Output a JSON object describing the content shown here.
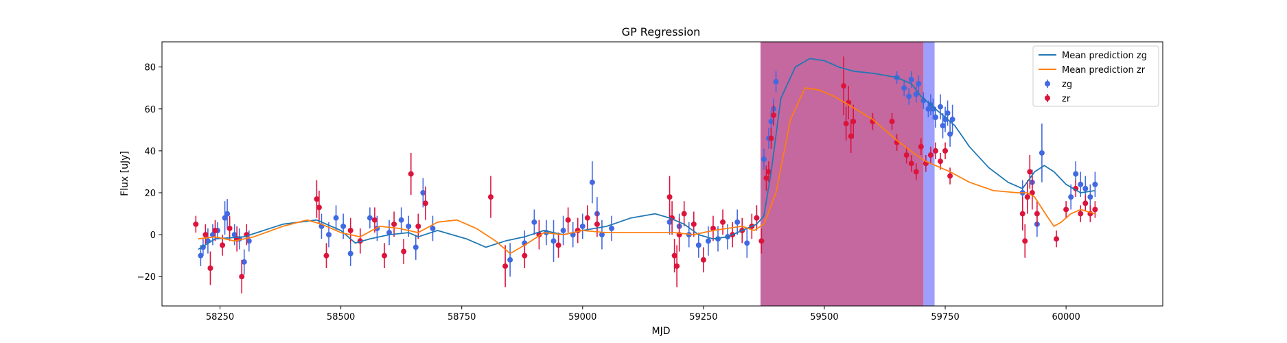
{
  "chart_data": {
    "type": "scatter",
    "title": "GP Regression",
    "xlabel": "MJD",
    "ylabel": "Flux [uJy]",
    "xlim": [
      58130,
      60200
    ],
    "ylim": [
      -34,
      92
    ],
    "x_ticks": [
      58250,
      58500,
      58750,
      59000,
      59250,
      59500,
      59750,
      60000
    ],
    "y_ticks": [
      -20,
      0,
      20,
      40,
      60,
      80
    ],
    "legend_position": "top-right",
    "legend": [
      "Mean prediction zg",
      "Mean prediction zr",
      "zg",
      "zr"
    ],
    "shaded_regions": [
      {
        "x0": 59705,
        "x1": 59728,
        "color": "#9e9efc"
      },
      {
        "x0": 59368,
        "x1": 59705,
        "color": "#c4689f"
      }
    ],
    "series": [
      {
        "name": "Mean prediction zg",
        "kind": "line",
        "color": "#1f77b4",
        "x": [
          58205,
          58240,
          58300,
          58380,
          58450,
          58500,
          58530,
          58560,
          58600,
          58640,
          58660,
          58700,
          58760,
          58800,
          58840,
          58880,
          58920,
          58960,
          59000,
          59050,
          59100,
          59150,
          59180,
          59210,
          59240,
          59270,
          59300,
          59330,
          59360,
          59375,
          59390,
          59410,
          59440,
          59470,
          59500,
          59530,
          59560,
          59600,
          59650,
          59680,
          59700,
          59720,
          59740,
          59770,
          59800,
          59840,
          59880,
          59910,
          59935,
          59955,
          59975,
          60000,
          60030,
          60060
        ],
        "y": [
          -7,
          -2,
          -1,
          5,
          7,
          2,
          -4,
          -2,
          0,
          1,
          -1,
          2,
          -2,
          -6,
          -3,
          -1,
          2,
          0,
          2,
          4,
          8,
          10,
          8,
          5,
          0,
          -2,
          -1,
          2,
          5,
          9,
          30,
          65,
          80,
          84,
          83,
          80,
          78,
          77,
          75,
          72,
          66,
          62,
          58,
          52,
          42,
          32,
          25,
          22,
          30,
          33,
          30,
          24,
          20,
          21
        ]
      },
      {
        "name": "Mean prediction zr",
        "kind": "line",
        "color": "#ff7f0e",
        "x": [
          58205,
          58240,
          58280,
          58320,
          58380,
          58430,
          58460,
          58500,
          58540,
          58580,
          58620,
          58660,
          58700,
          58740,
          58780,
          58820,
          58850,
          58880,
          58920,
          58960,
          59000,
          59050,
          59100,
          59150,
          59190,
          59230,
          59270,
          59300,
          59330,
          59355,
          59375,
          59400,
          59430,
          59460,
          59490,
          59520,
          59550,
          59600,
          59650,
          59690,
          59710,
          59730,
          59760,
          59800,
          59850,
          59900,
          59920,
          59935,
          59960,
          59975,
          59990,
          60010,
          60030,
          60060
        ],
        "y": [
          -2,
          -1,
          -3,
          -1,
          4,
          7,
          5,
          1,
          -1,
          4,
          3,
          1,
          6,
          7,
          3,
          -3,
          -9,
          -5,
          1,
          0,
          2,
          1,
          1,
          1,
          1,
          0,
          2,
          3,
          4,
          2,
          5,
          20,
          55,
          70,
          69,
          66,
          62,
          55,
          45,
          38,
          35,
          33,
          30,
          25,
          21,
          20,
          20,
          18,
          9,
          4,
          6,
          10,
          12,
          10
        ]
      },
      {
        "name": "zg",
        "kind": "errorbar",
        "color": "#4169e1",
        "x": [
          58210,
          58215,
          58225,
          58235,
          58245,
          58260,
          58265,
          58280,
          58290,
          58300,
          58310,
          58460,
          58475,
          58490,
          58505,
          58520,
          58560,
          58575,
          58600,
          58625,
          58640,
          58655,
          58670,
          58690,
          58850,
          58880,
          58900,
          58925,
          58940,
          58960,
          58980,
          59000,
          59020,
          59030,
          59040,
          59060,
          59180,
          59200,
          59220,
          59240,
          59260,
          59280,
          59300,
          59320,
          59340,
          59360,
          59375,
          59385,
          59390,
          59395,
          59400,
          59650,
          59665,
          59675,
          59680,
          59690,
          59695,
          59705,
          59715,
          59720,
          59725,
          59730,
          59740,
          59745,
          59750,
          59755,
          59760,
          59765,
          59910,
          59920,
          59930,
          59940,
          59950,
          60010,
          60020,
          60030,
          60040,
          60050,
          60060
        ],
        "y": [
          -10,
          -6,
          -3,
          0,
          2,
          8,
          10,
          0,
          -2,
          -13,
          -3,
          4,
          0,
          8,
          4,
          -9,
          8,
          3,
          1,
          7,
          4,
          -6,
          20,
          3,
          -12,
          -4,
          6,
          1,
          -3,
          2,
          0,
          4,
          25,
          10,
          0,
          3,
          6,
          4,
          0,
          -5,
          -3,
          -2,
          -1,
          6,
          -4,
          8,
          36,
          46,
          54,
          60,
          73,
          75,
          70,
          66,
          74,
          67,
          72,
          64,
          60,
          62,
          60,
          56,
          61,
          52,
          55,
          58,
          48,
          55,
          20,
          18,
          25,
          5,
          39,
          18,
          29,
          24,
          22,
          18,
          24
        ],
        "err": [
          5,
          4,
          6,
          5,
          4,
          8,
          7,
          5,
          5,
          6,
          5,
          6,
          6,
          6,
          6,
          6,
          5,
          6,
          6,
          6,
          5,
          6,
          7,
          6,
          8,
          6,
          6,
          6,
          10,
          7,
          6,
          6,
          10,
          8,
          7,
          6,
          6,
          6,
          6,
          6,
          7,
          6,
          6,
          6,
          7,
          6,
          5,
          5,
          5,
          5,
          5,
          3,
          4,
          4,
          4,
          4,
          4,
          4,
          4,
          5,
          5,
          5,
          6,
          6,
          6,
          6,
          6,
          7,
          6,
          6,
          6,
          6,
          14,
          6,
          6,
          6,
          6,
          6,
          6
        ]
      },
      {
        "name": "zr",
        "kind": "errorbar",
        "color": "#dc143c",
        "x": [
          58200,
          58220,
          58230,
          58240,
          58255,
          58270,
          58285,
          58295,
          58305,
          58450,
          58455,
          58470,
          58520,
          58540,
          58570,
          58590,
          58610,
          58630,
          58645,
          58660,
          58675,
          58810,
          58840,
          58880,
          58910,
          58950,
          58970,
          58990,
          59010,
          59030,
          59180,
          59185,
          59190,
          59195,
          59200,
          59210,
          59230,
          59250,
          59270,
          59290,
          59310,
          59330,
          59350,
          59360,
          59370,
          59380,
          59385,
          59390,
          59395,
          59540,
          59545,
          59550,
          59555,
          59560,
          59600,
          59640,
          59650,
          59670,
          59680,
          59690,
          59700,
          59710,
          59720,
          59730,
          59740,
          59750,
          59760,
          59910,
          59915,
          59920,
          59925,
          59930,
          59940,
          59980,
          60000,
          60020,
          60030,
          60040,
          60050,
          60060
        ],
        "y": [
          5,
          0,
          -16,
          2,
          -5,
          3,
          -2,
          -20,
          0,
          17,
          13,
          -10,
          2,
          -3,
          7,
          -10,
          5,
          -8,
          29,
          4,
          15,
          18,
          -15,
          -10,
          0,
          -5,
          7,
          2,
          8,
          5,
          18,
          8,
          -10,
          -15,
          0,
          10,
          5,
          -12,
          3,
          6,
          0,
          2,
          4,
          8,
          -3,
          27,
          30,
          46,
          57,
          71,
          53,
          63,
          47,
          54,
          54,
          54,
          44,
          38,
          34,
          30,
          42,
          34,
          38,
          40,
          35,
          40,
          28,
          10,
          -3,
          18,
          30,
          20,
          10,
          -2,
          12,
          22,
          10,
          15,
          10,
          12
        ],
        "err": [
          4,
          5,
          8,
          5,
          5,
          6,
          6,
          8,
          5,
          9,
          8,
          6,
          6,
          6,
          6,
          6,
          6,
          6,
          10,
          6,
          8,
          10,
          10,
          6,
          7,
          6,
          6,
          6,
          6,
          6,
          10,
          8,
          8,
          10,
          8,
          6,
          6,
          6,
          6,
          6,
          6,
          6,
          6,
          6,
          6,
          6,
          5,
          5,
          5,
          14,
          8,
          8,
          8,
          8,
          4,
          4,
          4,
          4,
          4,
          4,
          4,
          4,
          4,
          4,
          4,
          4,
          4,
          8,
          8,
          8,
          8,
          8,
          6,
          4,
          4,
          4,
          4,
          4,
          4,
          4
        ]
      }
    ]
  }
}
